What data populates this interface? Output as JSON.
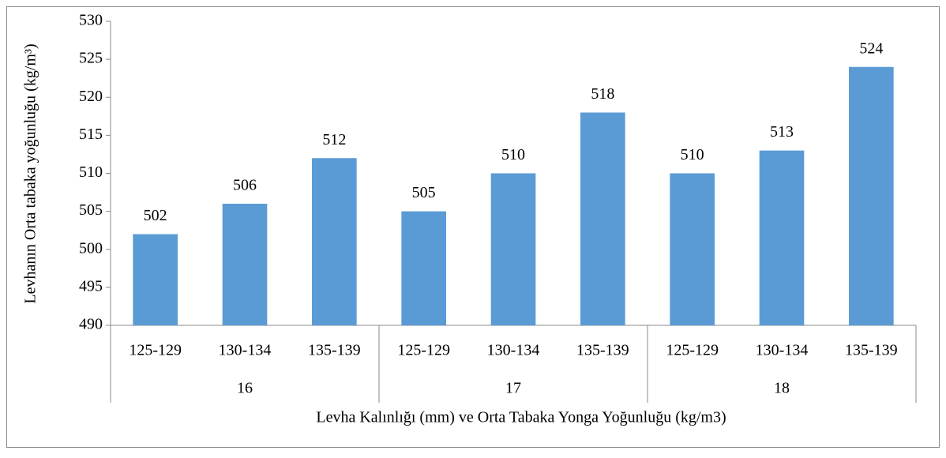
{
  "chart_data": {
    "type": "bar",
    "x_label": "Levha Kalınlığı (mm) ve Orta Tabaka Yonga Yoğunluğu (kg/m3)",
    "y_label": "Levhanın Orta tabaka yoğunluğu (kg/m³)",
    "categories": [
      "125-129",
      "130-134",
      "135-139",
      "125-129",
      "130-134",
      "135-139",
      "125-129",
      "130-134",
      "135-139"
    ],
    "groups": [
      "16",
      "17",
      "18"
    ],
    "values": [
      502,
      506,
      512,
      505,
      510,
      518,
      510,
      513,
      524
    ],
    "color": "#5b9bd5",
    "ylim": [
      490,
      530
    ],
    "yticks": [
      490,
      495,
      500,
      505,
      510,
      515,
      520,
      525,
      530
    ],
    "grid": false
  }
}
